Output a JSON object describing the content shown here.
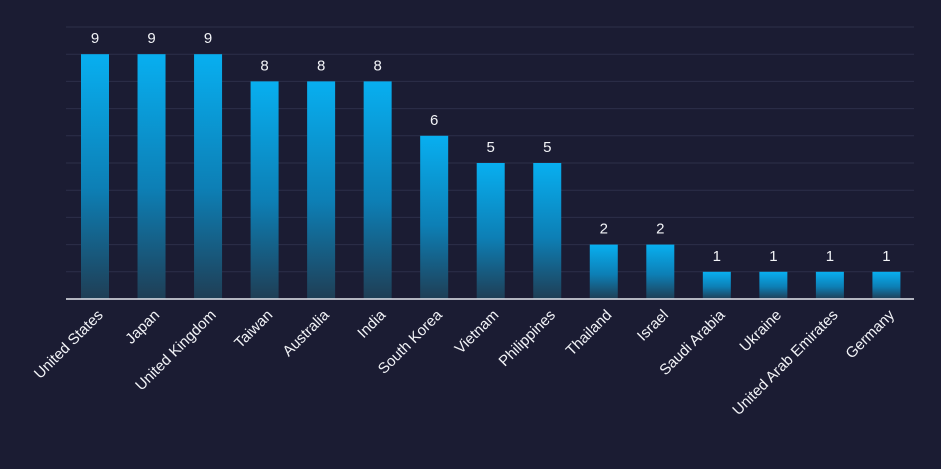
{
  "chart_data": {
    "type": "bar",
    "title": "",
    "xlabel": "",
    "ylabel": "",
    "categories": [
      "United States",
      "Japan",
      "United Kingdom",
      "Taiwan",
      "Australia",
      "India",
      "South Korea",
      "Vietnam",
      "Philippines",
      "Thailand",
      "Israel",
      "Saudi Arabia",
      "Ukraine",
      "United Arab Emirates",
      "Germany"
    ],
    "values": [
      9,
      9,
      9,
      8,
      8,
      8,
      6,
      5,
      5,
      2,
      2,
      1,
      1,
      1,
      1
    ],
    "ylim": [
      0,
      10
    ],
    "grid": true,
    "legend": "none",
    "colors": {
      "background": "#1b1c33",
      "bar_top": "#08aff0",
      "bar_bottom": "#1f3e55",
      "gridline": "#2d2f4a",
      "axis": "#e6e8ef",
      "text": "#f2f3f7"
    }
  }
}
